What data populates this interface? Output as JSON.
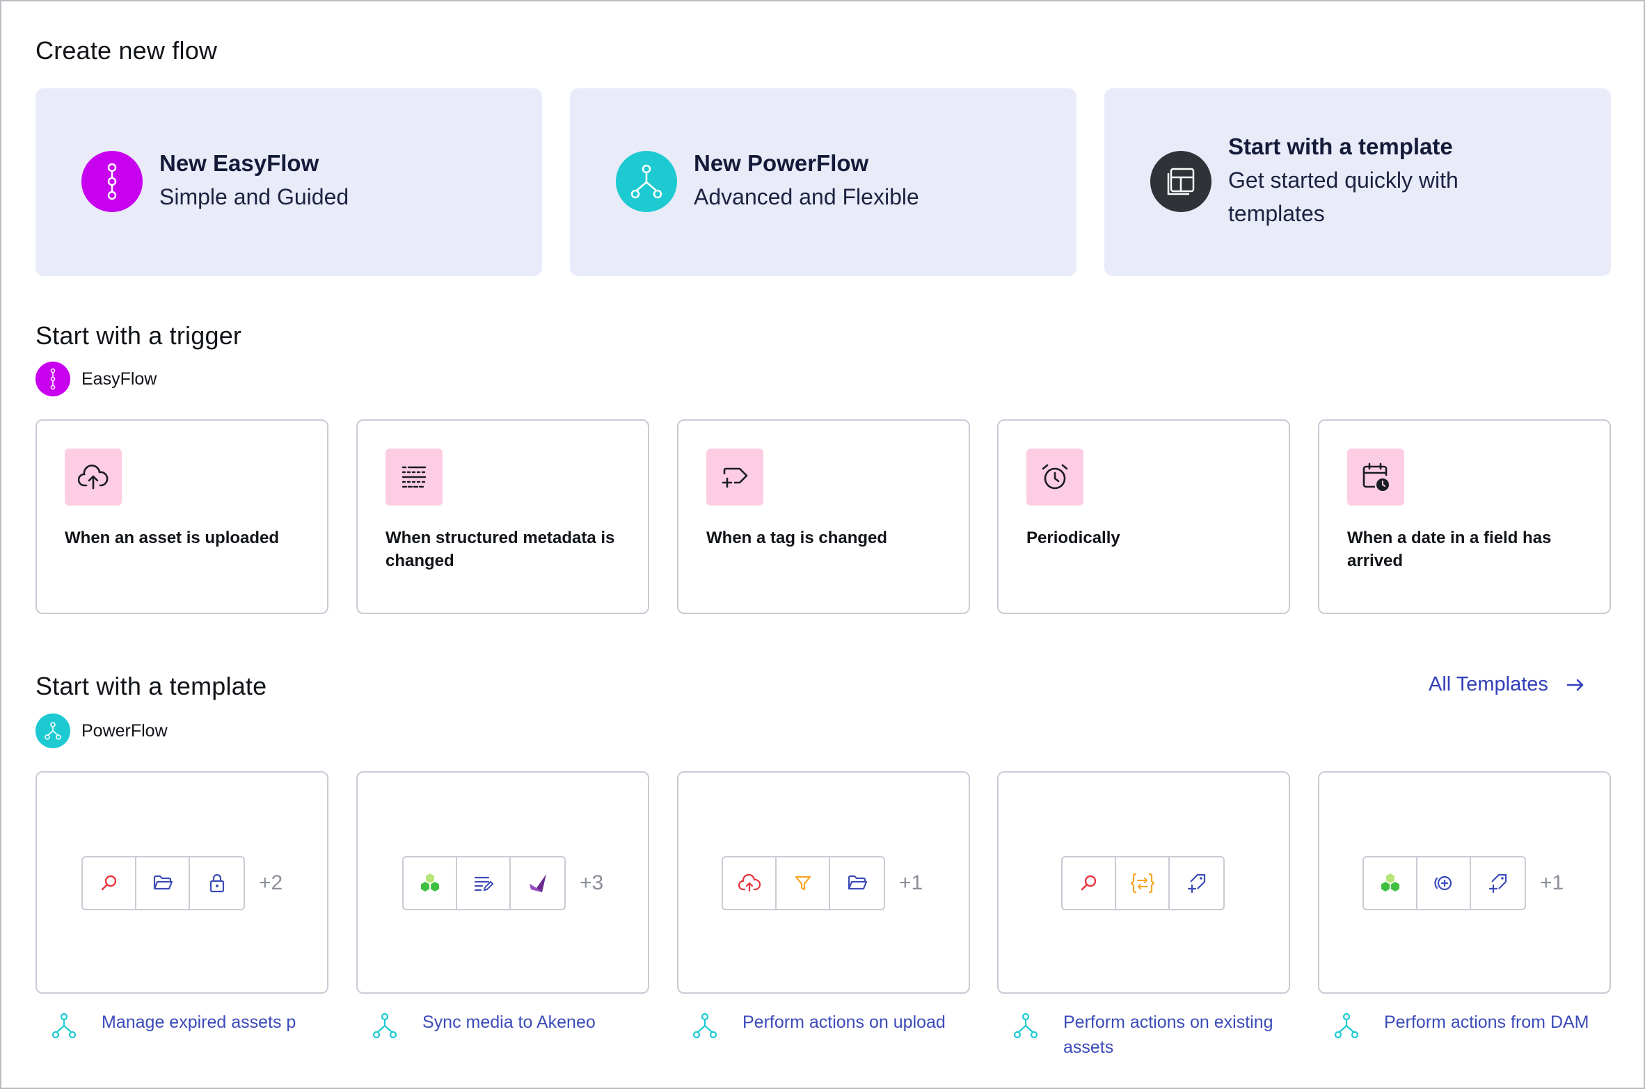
{
  "create": {
    "title": "Create new flow",
    "cards": [
      {
        "title": "New EasyFlow",
        "subtitle": "Simple and Guided"
      },
      {
        "title": "New PowerFlow",
        "subtitle": "Advanced and Flexible"
      },
      {
        "title": "Start with a template",
        "subtitle_line1": "Get started quickly with",
        "subtitle_line2": "templates"
      }
    ]
  },
  "trigger": {
    "title": "Start with a trigger",
    "badge": "EasyFlow",
    "items": [
      {
        "label": "When an asset is uploaded",
        "icon": "cloud-upload-icon"
      },
      {
        "label": "When structured metadata is changed",
        "icon": "structured-metadata-icon"
      },
      {
        "label": "When a tag is changed",
        "icon": "tag-plus-icon"
      },
      {
        "label": "Periodically",
        "icon": "alarm-clock-icon"
      },
      {
        "label": "When a date in a field has arrived",
        "icon": "calendar-clock-icon"
      }
    ]
  },
  "templates": {
    "title": "Start with a template",
    "badge": "PowerFlow",
    "all_label": "All Templates",
    "items": [
      {
        "label": "Manage expired assets p",
        "more": "+2",
        "icons": [
          "search-icon",
          "folder-icon",
          "lock-icon"
        ]
      },
      {
        "label": "Sync media to Akeneo",
        "more": "+3",
        "icons": [
          "hexagons-icon",
          "edit-list-icon",
          "akeneo-logo-icon"
        ]
      },
      {
        "label": "Perform actions on upload",
        "more": "+1",
        "icons": [
          "cloud-upload-icon",
          "filter-icon",
          "folder-icon"
        ]
      },
      {
        "label": "Perform actions on existing assets",
        "more": "",
        "icons": [
          "search-icon",
          "code-transfer-icon",
          "tag-plus-icon"
        ]
      },
      {
        "label": "Perform actions from DAM",
        "more": "+1",
        "icons": [
          "hexagons-icon",
          "plus-circle-icon",
          "tag-plus-icon"
        ]
      }
    ]
  },
  "colors": {
    "easyflow": "#c800f0",
    "powerflow": "#1ecad2",
    "template": "#2f3337",
    "card_bg": "#e9ebf8",
    "trigger_icon_bg": "#fdcde3",
    "link": "#3c4bb8"
  }
}
